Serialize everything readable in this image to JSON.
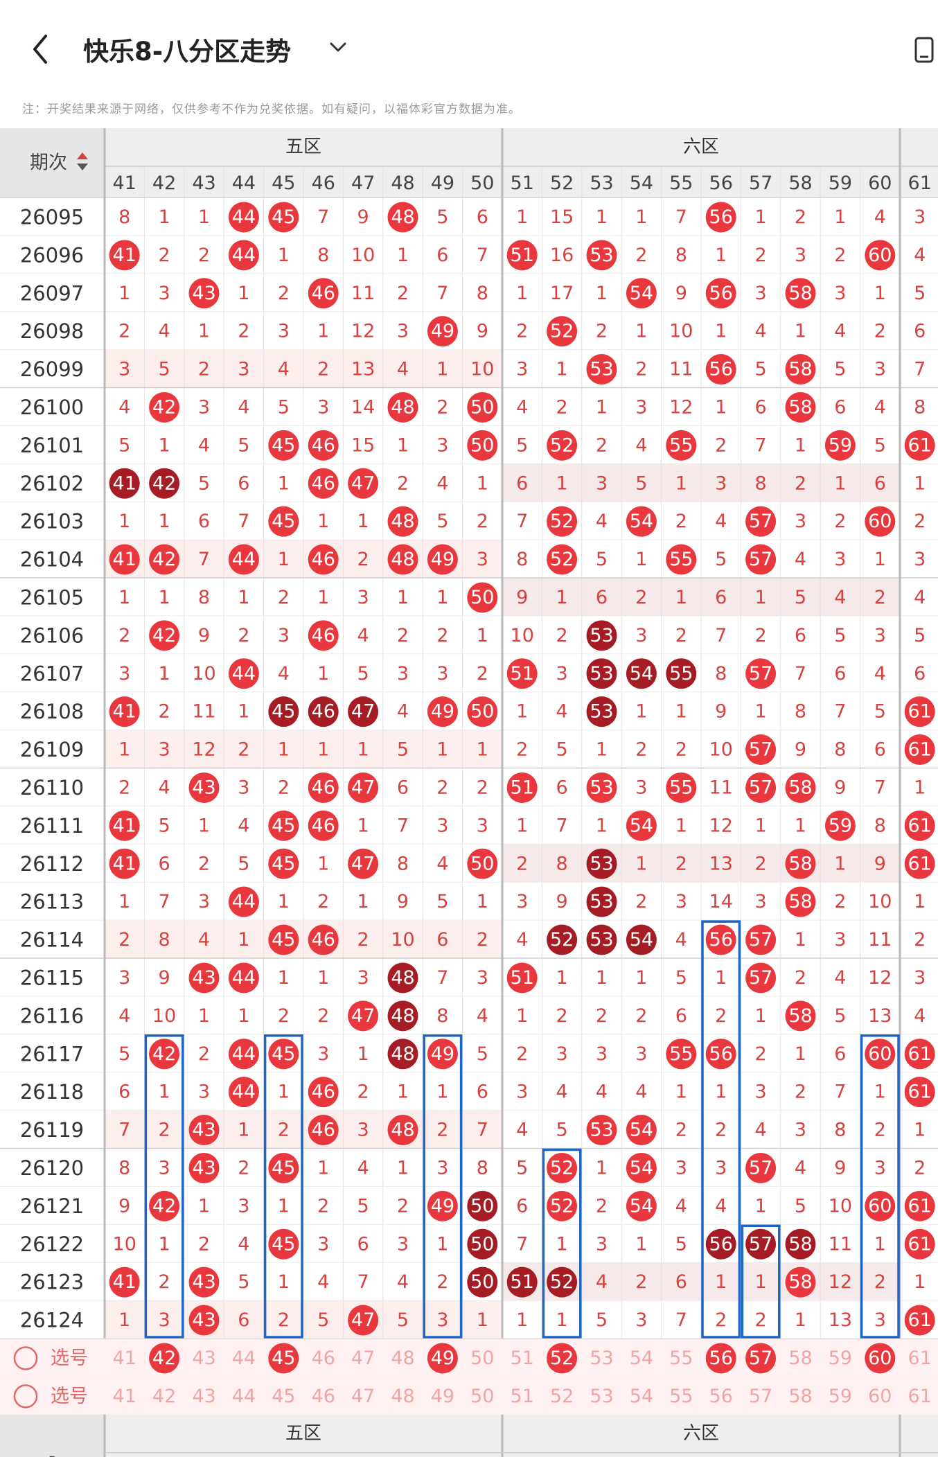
{
  "header": {
    "title": "快乐8-八分区走势",
    "back_icon": "chevron-left-icon",
    "dropdown_icon": "chevron-down-icon",
    "device_icon": "phone-icon"
  },
  "note": "注：开奖结果来源于网络，仅供参考不作为兑奖依据。如有疑问，以福体彩官方数据为准。",
  "table": {
    "issue_header": "期次",
    "sort_icon": "sort-arrows-icon",
    "zones": [
      {
        "name": "五区",
        "first_col": 41
      },
      {
        "name": "六区",
        "first_col": 51
      }
    ],
    "columns": [
      41,
      42,
      43,
      44,
      45,
      46,
      47,
      48,
      49,
      50,
      51,
      52,
      53,
      54,
      55,
      56,
      57,
      58,
      59,
      60,
      61
    ],
    "rows": [
      {
        "issue": "26095",
        "cells": [
          "8",
          "1",
          "1",
          "44",
          "45",
          "7",
          "9",
          "48",
          "5",
          "6",
          "1",
          "15",
          "1",
          "1",
          "7",
          "56",
          "1",
          "2",
          "1",
          "4",
          "3"
        ]
      },
      {
        "issue": "26096",
        "cells": [
          "41",
          "2",
          "2",
          "44",
          "1",
          "8",
          "10",
          "1",
          "6",
          "7",
          "51",
          "16",
          "53",
          "2",
          "8",
          "1",
          "2",
          "3",
          "2",
          "60",
          "4"
        ]
      },
      {
        "issue": "26097",
        "cells": [
          "1",
          "3",
          "43",
          "1",
          "2",
          "46",
          "11",
          "2",
          "7",
          "8",
          "1",
          "17",
          "1",
          "54",
          "9",
          "56",
          "3",
          "58",
          "3",
          "1",
          "5"
        ]
      },
      {
        "issue": "26098",
        "cells": [
          "2",
          "4",
          "1",
          "2",
          "3",
          "1",
          "12",
          "3",
          "49",
          "9",
          "2",
          "52",
          "2",
          "1",
          "10",
          "1",
          "4",
          "1",
          "4",
          "2",
          "6"
        ]
      },
      {
        "issue": "26099",
        "cells": [
          "3",
          "5",
          "2",
          "3",
          "4",
          "2",
          "13",
          "4",
          "1",
          "10",
          "3",
          "1",
          "53",
          "2",
          "11",
          "56",
          "5",
          "58",
          "5",
          "3",
          "7"
        ]
      },
      {
        "issue": "26100",
        "cells": [
          "4",
          "42",
          "3",
          "4",
          "5",
          "3",
          "14",
          "48",
          "2",
          "50",
          "4",
          "2",
          "1",
          "3",
          "12",
          "1",
          "6",
          "58",
          "6",
          "4",
          "8"
        ]
      },
      {
        "issue": "26101",
        "cells": [
          "5",
          "1",
          "4",
          "5",
          "45",
          "46",
          "15",
          "1",
          "3",
          "50",
          "5",
          "52",
          "2",
          "4",
          "55",
          "2",
          "7",
          "1",
          "59",
          "5",
          "61"
        ]
      },
      {
        "issue": "26102",
        "cells": [
          "41",
          "42",
          "5",
          "6",
          "1",
          "46",
          "47",
          "2",
          "4",
          "1",
          "6",
          "1",
          "3",
          "5",
          "1",
          "3",
          "8",
          "2",
          "1",
          "6",
          "1"
        ]
      },
      {
        "issue": "26103",
        "cells": [
          "1",
          "1",
          "6",
          "7",
          "45",
          "1",
          "1",
          "48",
          "5",
          "2",
          "7",
          "52",
          "4",
          "54",
          "2",
          "4",
          "57",
          "3",
          "2",
          "60",
          "2"
        ]
      },
      {
        "issue": "26104",
        "cells": [
          "41",
          "42",
          "7",
          "44",
          "1",
          "46",
          "2",
          "48",
          "49",
          "3",
          "8",
          "52",
          "5",
          "1",
          "55",
          "5",
          "57",
          "4",
          "3",
          "1",
          "3"
        ]
      },
      {
        "issue": "26105",
        "cells": [
          "1",
          "1",
          "8",
          "1",
          "2",
          "1",
          "3",
          "1",
          "1",
          "50",
          "9",
          "1",
          "6",
          "2",
          "1",
          "6",
          "1",
          "5",
          "4",
          "2",
          "4"
        ]
      },
      {
        "issue": "26106",
        "cells": [
          "2",
          "42",
          "9",
          "2",
          "3",
          "46",
          "4",
          "2",
          "2",
          "1",
          "10",
          "2",
          "53",
          "3",
          "2",
          "7",
          "2",
          "6",
          "5",
          "3",
          "5"
        ]
      },
      {
        "issue": "26107",
        "cells": [
          "3",
          "1",
          "10",
          "44",
          "4",
          "1",
          "5",
          "3",
          "3",
          "2",
          "51",
          "3",
          "53",
          "54",
          "55",
          "8",
          "57",
          "7",
          "6",
          "4",
          "6"
        ]
      },
      {
        "issue": "26108",
        "cells": [
          "41",
          "2",
          "11",
          "1",
          "45",
          "46",
          "47",
          "4",
          "49",
          "50",
          "1",
          "4",
          "53",
          "1",
          "1",
          "9",
          "1",
          "8",
          "7",
          "5",
          "61"
        ]
      },
      {
        "issue": "26109",
        "cells": [
          "1",
          "3",
          "12",
          "2",
          "1",
          "1",
          "1",
          "5",
          "1",
          "1",
          "2",
          "5",
          "1",
          "2",
          "2",
          "10",
          "57",
          "9",
          "8",
          "6",
          "61"
        ]
      },
      {
        "issue": "26110",
        "cells": [
          "2",
          "4",
          "43",
          "3",
          "2",
          "46",
          "47",
          "6",
          "2",
          "2",
          "51",
          "6",
          "53",
          "3",
          "55",
          "11",
          "57",
          "58",
          "9",
          "7",
          "1"
        ]
      },
      {
        "issue": "26111",
        "cells": [
          "41",
          "5",
          "1",
          "4",
          "45",
          "46",
          "1",
          "7",
          "3",
          "3",
          "1",
          "7",
          "1",
          "54",
          "1",
          "12",
          "1",
          "1",
          "59",
          "8",
          "61"
        ]
      },
      {
        "issue": "26112",
        "cells": [
          "41",
          "6",
          "2",
          "5",
          "45",
          "1",
          "47",
          "8",
          "4",
          "50",
          "2",
          "8",
          "53",
          "1",
          "2",
          "13",
          "2",
          "58",
          "1",
          "9",
          "61"
        ]
      },
      {
        "issue": "26113",
        "cells": [
          "1",
          "7",
          "3",
          "44",
          "1",
          "2",
          "1",
          "9",
          "5",
          "1",
          "3",
          "9",
          "53",
          "2",
          "3",
          "14",
          "3",
          "58",
          "2",
          "10",
          "1"
        ]
      },
      {
        "issue": "26114",
        "cells": [
          "2",
          "8",
          "4",
          "1",
          "45",
          "46",
          "2",
          "10",
          "6",
          "2",
          "4",
          "52",
          "53",
          "54",
          "4",
          "56",
          "57",
          "1",
          "3",
          "11",
          "2"
        ]
      },
      {
        "issue": "26115",
        "cells": [
          "3",
          "9",
          "43",
          "44",
          "1",
          "1",
          "3",
          "48",
          "7",
          "3",
          "51",
          "1",
          "1",
          "1",
          "5",
          "1",
          "57",
          "2",
          "4",
          "12",
          "3"
        ]
      },
      {
        "issue": "26116",
        "cells": [
          "4",
          "10",
          "1",
          "1",
          "2",
          "2",
          "47",
          "48",
          "8",
          "4",
          "1",
          "2",
          "2",
          "2",
          "6",
          "2",
          "1",
          "58",
          "5",
          "13",
          "4"
        ]
      },
      {
        "issue": "26117",
        "cells": [
          "5",
          "42",
          "2",
          "44",
          "45",
          "3",
          "1",
          "48",
          "49",
          "5",
          "2",
          "3",
          "3",
          "3",
          "55",
          "56",
          "2",
          "1",
          "6",
          "60",
          "61"
        ]
      },
      {
        "issue": "26118",
        "cells": [
          "6",
          "1",
          "3",
          "44",
          "1",
          "46",
          "2",
          "1",
          "1",
          "6",
          "3",
          "4",
          "4",
          "4",
          "1",
          "1",
          "3",
          "2",
          "7",
          "1",
          "61"
        ]
      },
      {
        "issue": "26119",
        "cells": [
          "7",
          "2",
          "43",
          "1",
          "2",
          "46",
          "3",
          "48",
          "2",
          "7",
          "4",
          "5",
          "53",
          "54",
          "2",
          "2",
          "4",
          "3",
          "8",
          "2",
          "1"
        ]
      },
      {
        "issue": "26120",
        "cells": [
          "8",
          "3",
          "43",
          "2",
          "45",
          "1",
          "4",
          "1",
          "3",
          "8",
          "5",
          "52",
          "1",
          "54",
          "3",
          "3",
          "57",
          "4",
          "9",
          "3",
          "2"
        ]
      },
      {
        "issue": "26121",
        "cells": [
          "9",
          "42",
          "1",
          "3",
          "1",
          "2",
          "5",
          "2",
          "49",
          "50",
          "6",
          "52",
          "2",
          "54",
          "4",
          "4",
          "1",
          "5",
          "10",
          "60",
          "61"
        ]
      },
      {
        "issue": "26122",
        "cells": [
          "10",
          "1",
          "2",
          "4",
          "45",
          "3",
          "6",
          "3",
          "1",
          "50",
          "7",
          "1",
          "3",
          "1",
          "5",
          "56",
          "57",
          "58",
          "11",
          "1",
          "61"
        ]
      },
      {
        "issue": "26123",
        "cells": [
          "41",
          "2",
          "43",
          "5",
          "1",
          "4",
          "7",
          "4",
          "2",
          "50",
          "51",
          "52",
          "4",
          "2",
          "6",
          "1",
          "1",
          "58",
          "12",
          "2",
          "1"
        ]
      },
      {
        "issue": "26124",
        "cells": [
          "1",
          "3",
          "43",
          "6",
          "2",
          "5",
          "47",
          "5",
          "3",
          "1",
          "1",
          "1",
          "5",
          "3",
          "7",
          "2",
          "2",
          "1",
          "13",
          "3",
          "61"
        ]
      }
    ],
    "dark_balls": [
      [
        7,
        0
      ],
      [
        7,
        1
      ],
      [
        13,
        4
      ],
      [
        13,
        5
      ],
      [
        13,
        6
      ],
      [
        11,
        12
      ],
      [
        12,
        12
      ],
      [
        12,
        13
      ],
      [
        12,
        14
      ],
      [
        13,
        12
      ],
      [
        17,
        12
      ],
      [
        18,
        12
      ],
      [
        19,
        11
      ],
      [
        19,
        12
      ],
      [
        19,
        13
      ],
      [
        20,
        7
      ],
      [
        21,
        7
      ],
      [
        22,
        7
      ],
      [
        26,
        9
      ],
      [
        27,
        9
      ],
      [
        27,
        15
      ],
      [
        27,
        16
      ],
      [
        27,
        17
      ],
      [
        28,
        9
      ],
      [
        28,
        10
      ],
      [
        28,
        11
      ]
    ],
    "pick_rows": [
      {
        "label": "选号",
        "circle_icon": "radio-circle-icon",
        "selected": [
          42,
          45,
          49,
          52,
          56,
          57,
          60
        ]
      },
      {
        "label": "选号",
        "circle_icon": "radio-circle-icon",
        "selected": []
      }
    ],
    "bottom_zones": [
      "五区",
      "六区"
    ],
    "bottom_dash": "-"
  }
}
